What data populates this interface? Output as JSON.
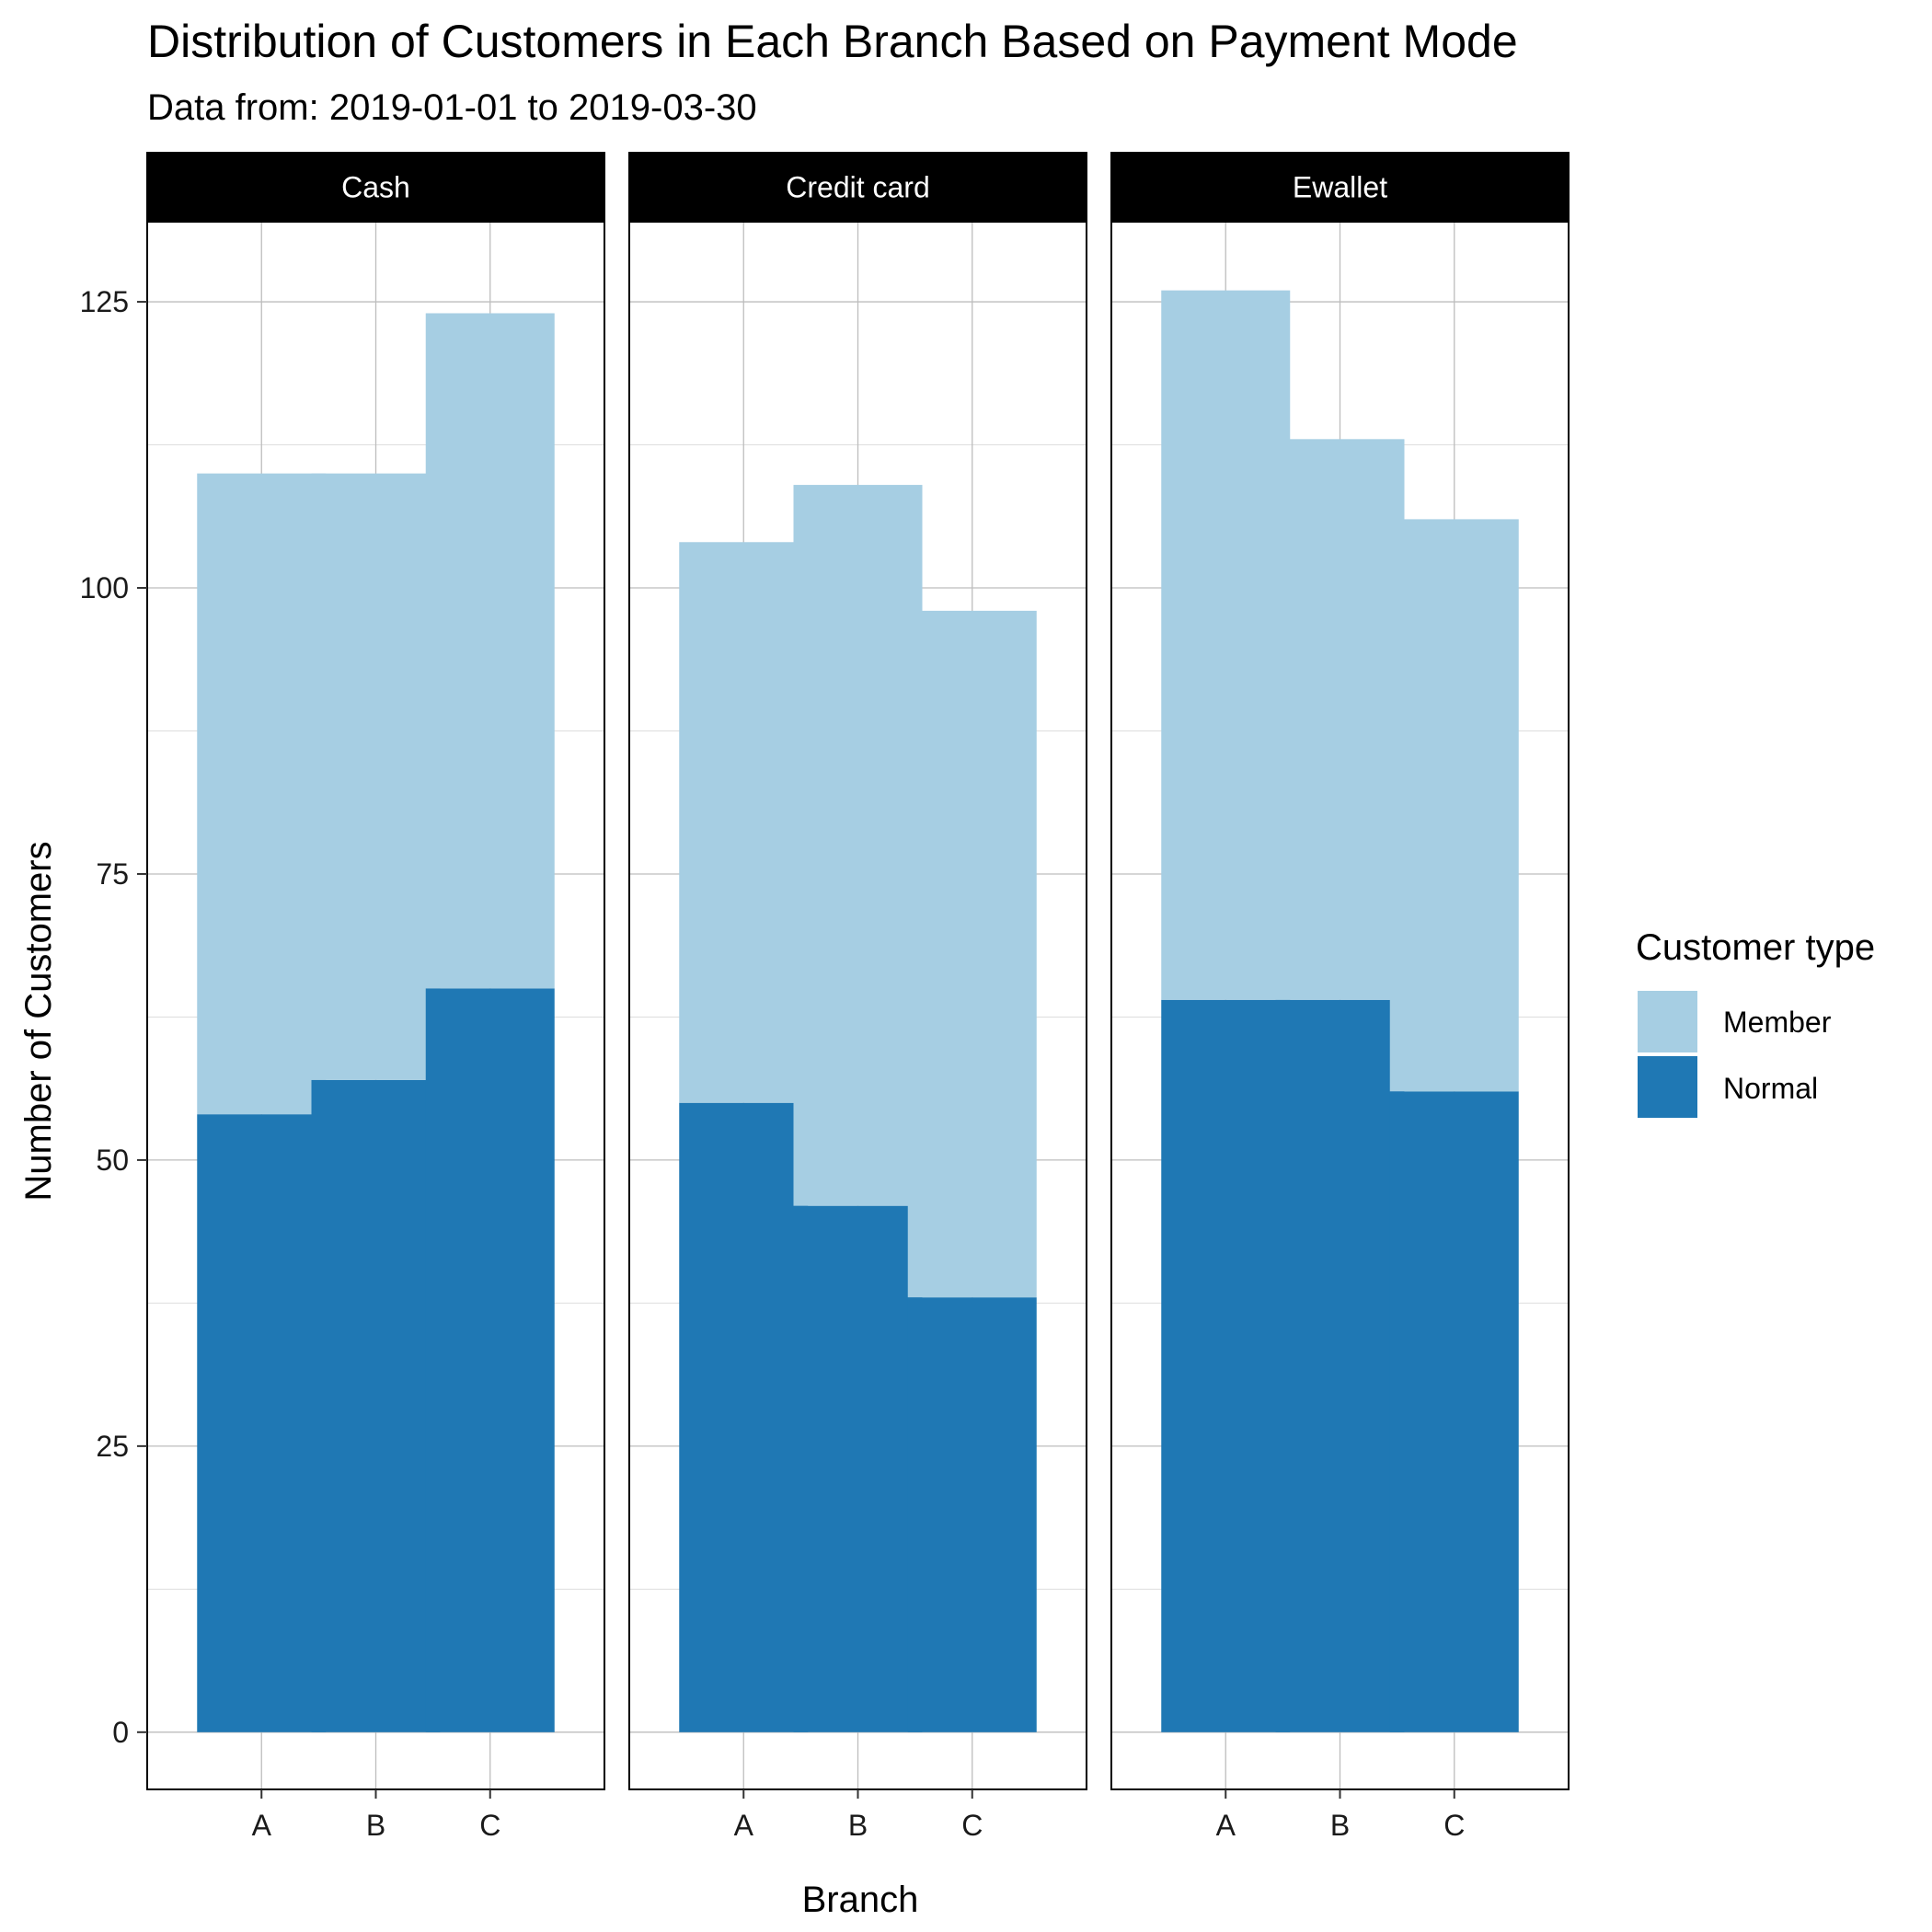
{
  "chart_data": {
    "type": "bar",
    "stacked": true,
    "faceted": true,
    "title": "Distribution of Customers in Each Branch Based on Payment Mode",
    "subtitle": "Data from: 2019-01-01 to 2019-03-30",
    "xlabel": "Branch",
    "ylabel": "Number of Customers",
    "ylim": [
      -5,
      132
    ],
    "yticks": [
      0,
      25,
      50,
      75,
      100,
      125
    ],
    "grid": true,
    "legend": {
      "title": "Customer type",
      "position": "right",
      "entries": [
        {
          "name": "Member",
          "color": "#a6cee3"
        },
        {
          "name": "Normal",
          "color": "#1f78b4"
        }
      ]
    },
    "categories": [
      "A",
      "B",
      "C"
    ],
    "facets": [
      {
        "label": "Cash",
        "series": [
          {
            "name": "Member",
            "values": [
              56,
              53,
              59
            ]
          },
          {
            "name": "Normal",
            "values": [
              54,
              57,
              65
            ]
          }
        ]
      },
      {
        "label": "Credit card",
        "series": [
          {
            "name": "Member",
            "values": [
              49,
              63,
              60
            ]
          },
          {
            "name": "Normal",
            "values": [
              55,
              46,
              38
            ]
          }
        ]
      },
      {
        "label": "Ewallet",
        "series": [
          {
            "name": "Member",
            "values": [
              62,
              49,
              50
            ]
          },
          {
            "name": "Normal",
            "values": [
              64,
              64,
              56
            ]
          }
        ]
      }
    ]
  }
}
